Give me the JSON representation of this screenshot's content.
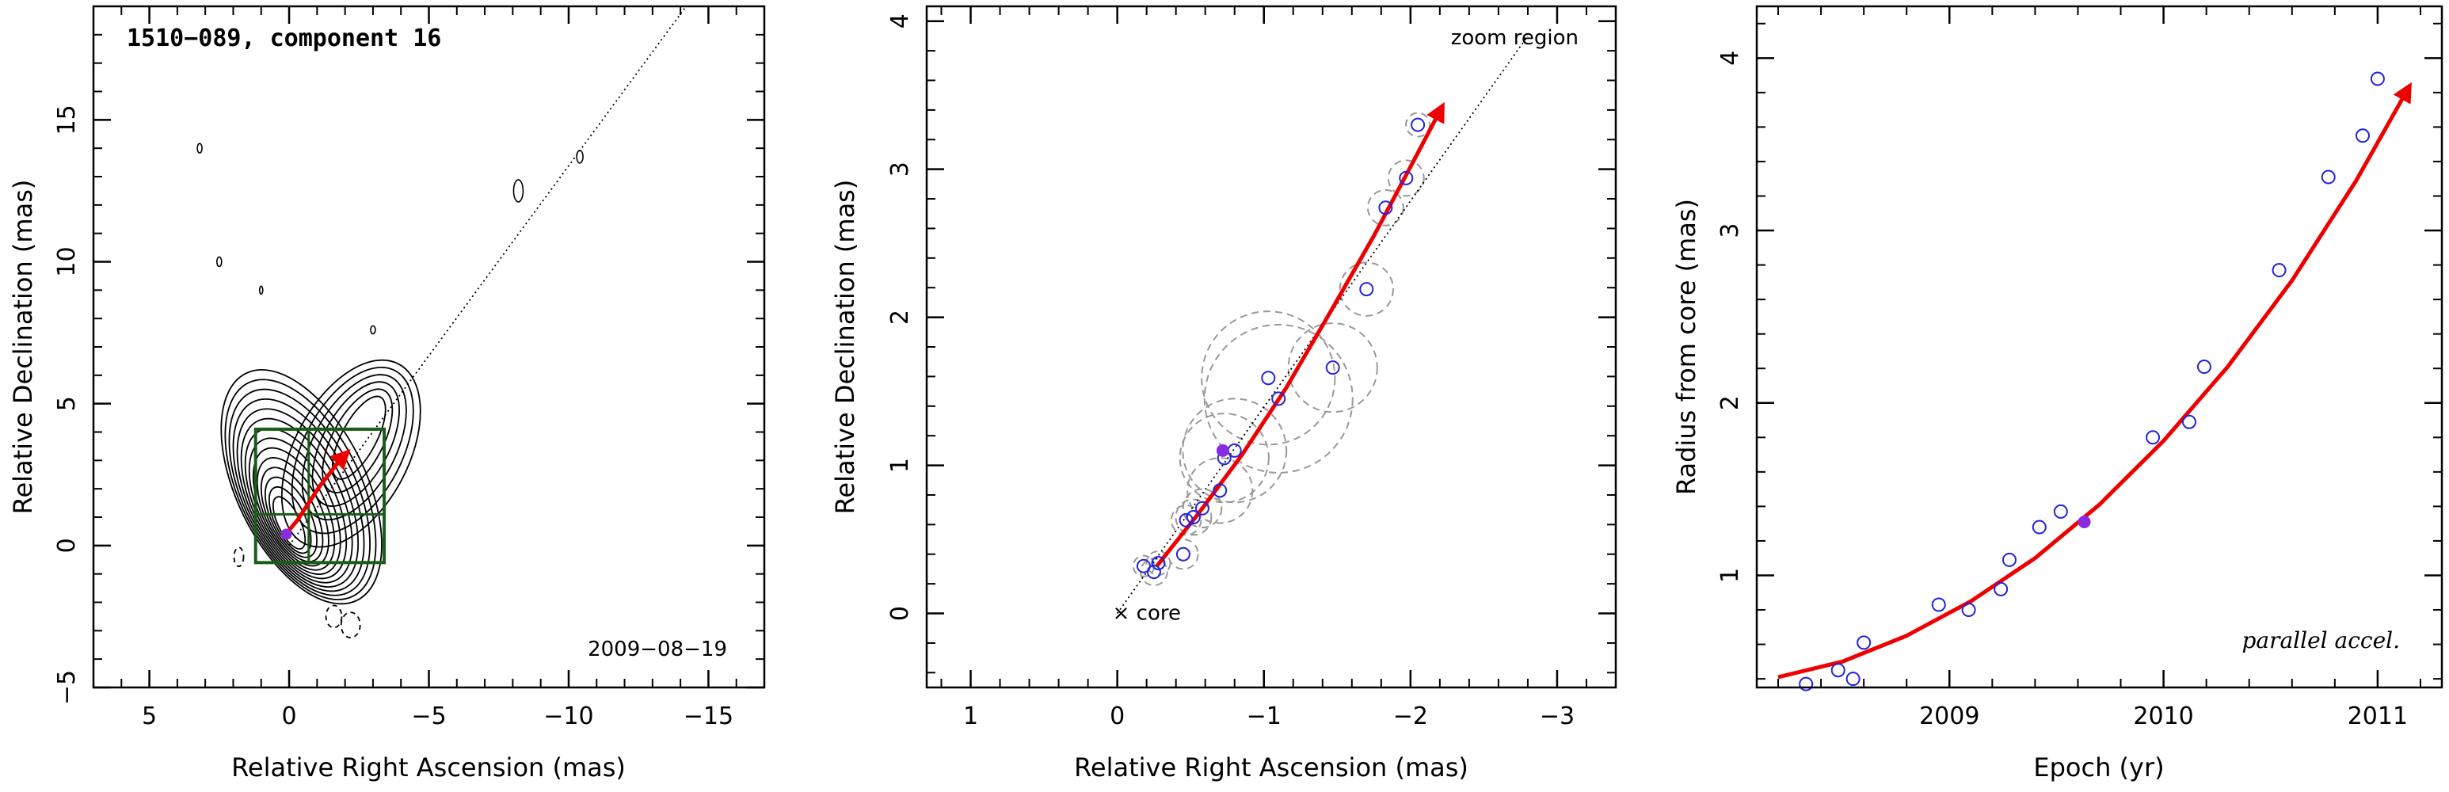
{
  "chart_data": [
    {
      "type": "contour",
      "title": "1510−089, component 16",
      "xlabel": "Relative Right Ascension (mas)",
      "ylabel": "Relative Declination (mas)",
      "xlim": [
        7,
        -17
      ],
      "ylim": [
        -5,
        19
      ],
      "xticks": [
        5,
        0,
        -5,
        -10,
        -15
      ],
      "yticks": [
        -5,
        0,
        5,
        10,
        15
      ],
      "date_label": "2009−08−19",
      "core": {
        "x": 0,
        "y": 0
      },
      "trajectory_direction_line": {
        "x": [
          0,
          -14.2
        ],
        "y": [
          0,
          19
        ]
      },
      "trajectory_x": [
        0.2,
        -0.3,
        -0.7,
        -1.1,
        -1.5,
        -1.8,
        -2.1
      ],
      "trajectory_y": [
        0.3,
        0.9,
        1.5,
        2.1,
        2.6,
        3.0,
        3.3
      ],
      "ellipse_center": {
        "x": 0.0,
        "y": 0.8
      },
      "zoom_box": {
        "x": [
          1.2,
          -3.4
        ],
        "y": [
          -0.6,
          4.1
        ],
        "inner_lines": {
          "x": -0.7,
          "y": 1.1
        }
      },
      "colors": {
        "trajectory": "#ee0000",
        "zoom_box": "#1a5c1a",
        "core_marker": "#8a2be2"
      }
    },
    {
      "type": "scatter",
      "xlabel": "Relative Right Ascension (mas)",
      "ylabel": "Relative Declination (mas)",
      "xlim": [
        1.3,
        -3.4
      ],
      "ylim": [
        -0.5,
        4.1
      ],
      "xticks": [
        1,
        0,
        -1,
        -2,
        -3
      ],
      "yticks": [
        0,
        1,
        2,
        3,
        4
      ],
      "annotations": {
        "zoom_label": "zoom region",
        "core_label": "× core"
      },
      "points": [
        {
          "x": -0.18,
          "y": 0.32,
          "err": 0.07
        },
        {
          "x": -0.25,
          "y": 0.28,
          "err": 0.09
        },
        {
          "x": -0.28,
          "y": 0.34,
          "err": 0.08
        },
        {
          "x": -0.45,
          "y": 0.4,
          "err": 0.1
        },
        {
          "x": -0.47,
          "y": 0.63,
          "err": 0.1
        },
        {
          "x": -0.52,
          "y": 0.65,
          "err": 0.12
        },
        {
          "x": -0.58,
          "y": 0.71,
          "err": 0.13
        },
        {
          "x": -0.7,
          "y": 0.83,
          "err": 0.22
        },
        {
          "x": -0.73,
          "y": 1.05,
          "err": 0.3
        },
        {
          "x": -0.8,
          "y": 1.1,
          "err": 0.35
        },
        {
          "x": -1.03,
          "y": 1.59,
          "err": 0.45
        },
        {
          "x": -1.1,
          "y": 1.45,
          "err": 0.5
        },
        {
          "x": -1.47,
          "y": 1.66,
          "err": 0.3
        },
        {
          "x": -1.7,
          "y": 2.19,
          "err": 0.18
        },
        {
          "x": -1.83,
          "y": 2.74,
          "err": 0.12
        },
        {
          "x": -1.97,
          "y": 2.94,
          "err": 0.12
        },
        {
          "x": -2.05,
          "y": 3.3,
          "err": 0.08
        }
      ],
      "reference_point": {
        "x": -0.72,
        "y": 1.1
      },
      "fit_x": [
        -0.27,
        -0.55,
        -0.85,
        -1.15,
        -1.45,
        -1.75,
        -2.05,
        -2.22
      ],
      "fit_y": [
        0.32,
        0.67,
        1.07,
        1.52,
        2.03,
        2.55,
        3.11,
        3.43
      ],
      "direction_line": {
        "x": [
          0,
          -2.8
        ],
        "y": [
          0,
          3.9
        ]
      },
      "colors": {
        "points": "#2222dd",
        "fit": "#ee0000",
        "reference_point": "#8a2be2",
        "errors": "#999999"
      }
    },
    {
      "type": "scatter",
      "xlabel": "Epoch (yr)",
      "ylabel": "Radius from core (mas)",
      "xlim": [
        2008.1,
        2011.3
      ],
      "ylim": [
        0.35,
        4.3
      ],
      "xticks": [
        2009,
        2010,
        2011
      ],
      "yticks": [
        1,
        2,
        3,
        4
      ],
      "annotation": "parallel accel.",
      "points": [
        {
          "x": 2008.33,
          "y": 0.37
        },
        {
          "x": 2008.48,
          "y": 0.45
        },
        {
          "x": 2008.55,
          "y": 0.4
        },
        {
          "x": 2008.6,
          "y": 0.61
        },
        {
          "x": 2008.95,
          "y": 0.83
        },
        {
          "x": 2009.09,
          "y": 0.8
        },
        {
          "x": 2009.24,
          "y": 0.92
        },
        {
          "x": 2009.28,
          "y": 1.09
        },
        {
          "x": 2009.42,
          "y": 1.28
        },
        {
          "x": 2009.52,
          "y": 1.37
        },
        {
          "x": 2009.95,
          "y": 1.8
        },
        {
          "x": 2010.12,
          "y": 1.89
        },
        {
          "x": 2010.19,
          "y": 2.21
        },
        {
          "x": 2010.54,
          "y": 2.77
        },
        {
          "x": 2010.77,
          "y": 3.31
        },
        {
          "x": 2010.93,
          "y": 3.55
        },
        {
          "x": 2011.0,
          "y": 3.88
        }
      ],
      "reference_point": {
        "x": 2009.63,
        "y": 1.31
      },
      "fit_x": [
        2008.2,
        2008.5,
        2008.8,
        2009.1,
        2009.4,
        2009.7,
        2010.0,
        2010.3,
        2010.6,
        2010.9,
        2011.15
      ],
      "fit_y": [
        0.41,
        0.5,
        0.65,
        0.85,
        1.1,
        1.41,
        1.78,
        2.21,
        2.71,
        3.29,
        3.84
      ],
      "colors": {
        "points": "#2222dd",
        "fit": "#ee0000",
        "reference_point": "#8a2be2"
      }
    }
  ]
}
